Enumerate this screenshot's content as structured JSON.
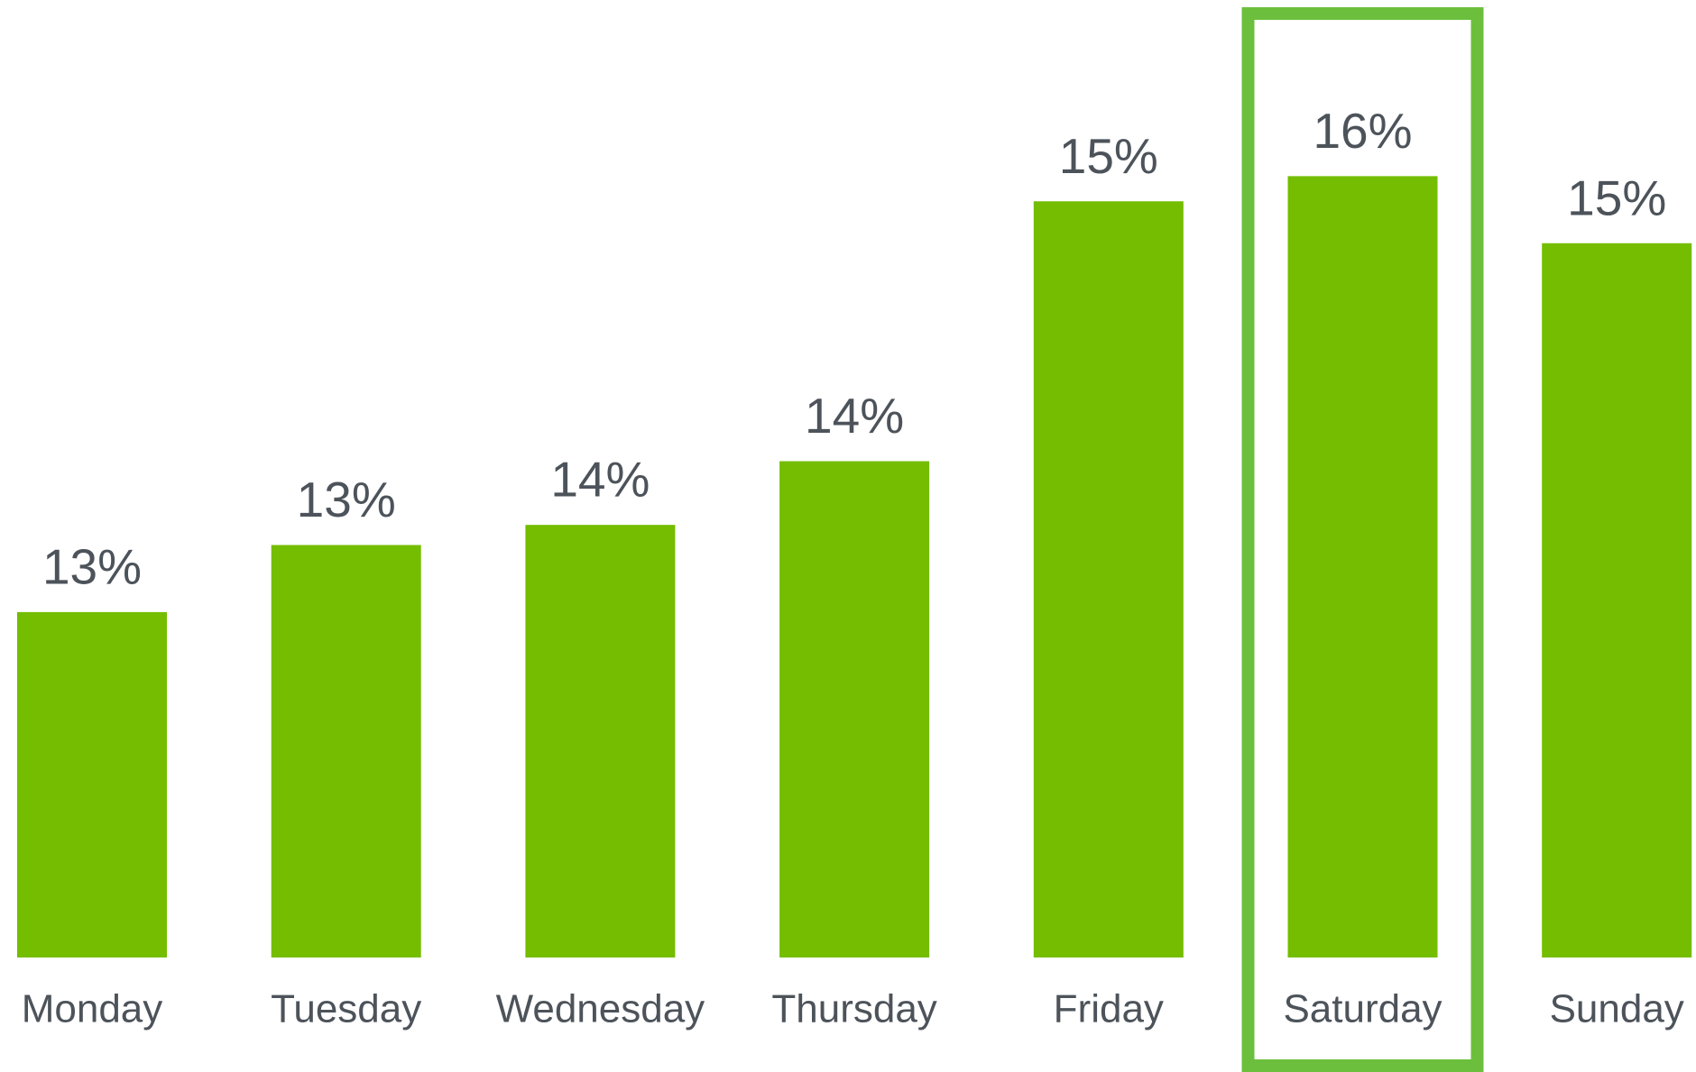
{
  "chart_data": {
    "type": "bar",
    "categories": [
      "Monday",
      "Tuesday",
      "Wednesday",
      "Thursday",
      "Friday",
      "Saturday",
      "Sunday"
    ],
    "values": [
      13.0,
      13.4,
      13.52,
      13.9,
      15.45,
      15.6,
      15.2
    ],
    "value_labels": [
      "13%",
      "13%",
      "14%",
      "14%",
      "15%",
      "16%",
      "15%"
    ],
    "color": "#74bd00",
    "ylim": [
      10.94,
      16.5
    ],
    "highlight": "Saturday",
    "highlight_color": "#6cbf3c"
  }
}
